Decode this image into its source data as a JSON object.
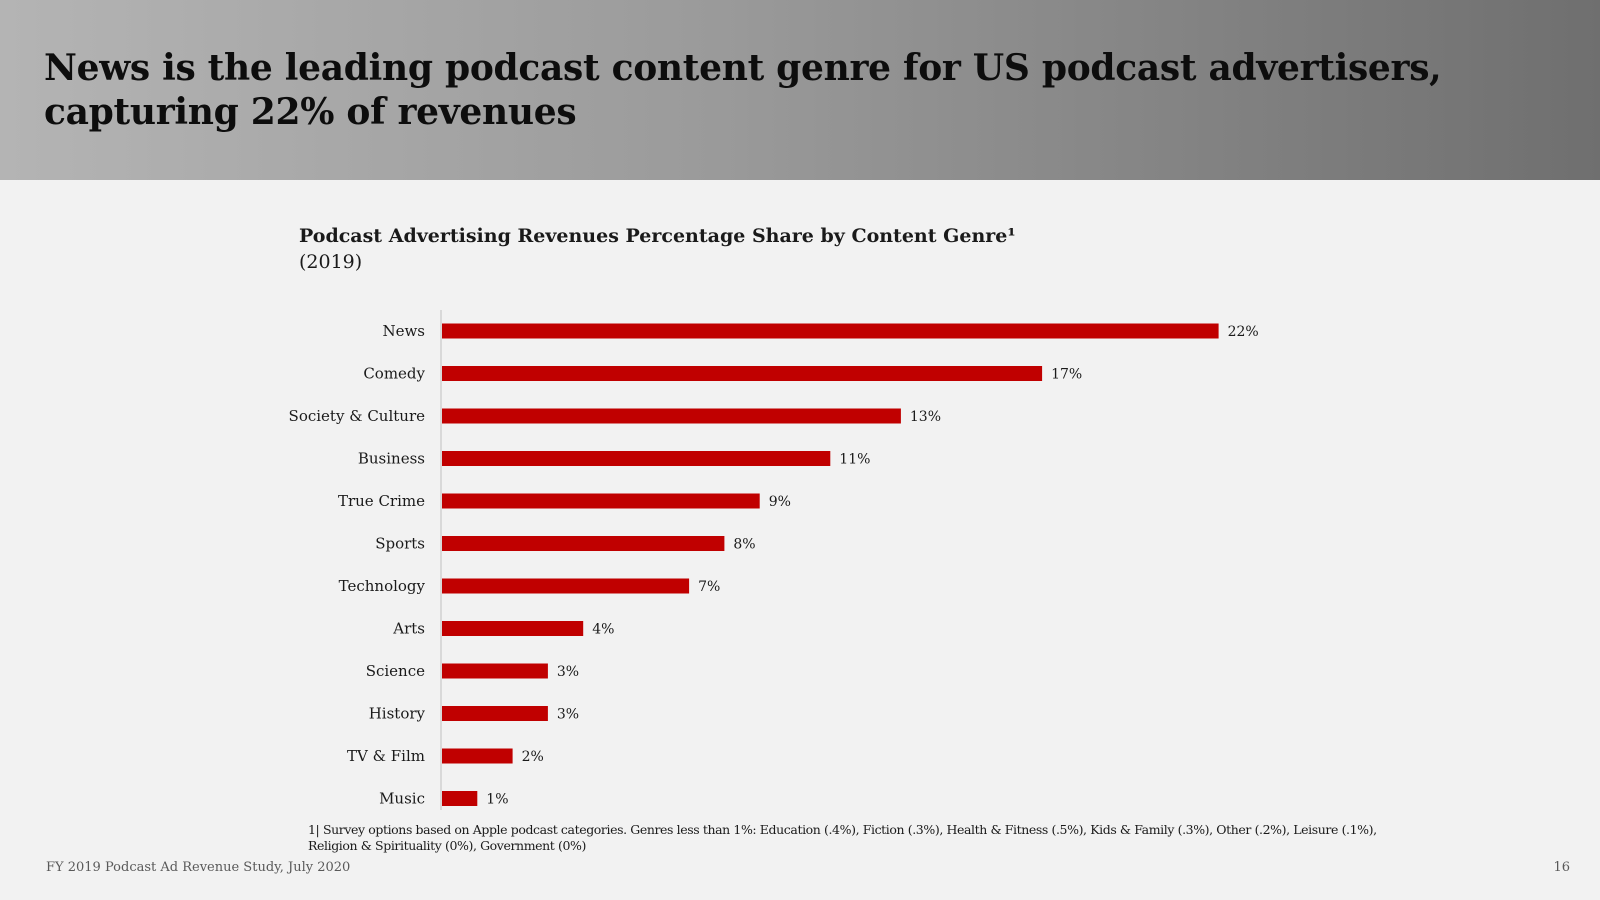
{
  "headline": "News is the leading podcast content genre for US podcast advertisers, capturing 22% of revenues",
  "chart_data": {
    "type": "bar",
    "orientation": "horizontal",
    "title": "Podcast Advertising Revenues Percentage Share by Content Genre¹",
    "subtitle": "(2019)",
    "categories": [
      "News",
      "Comedy",
      "Society & Culture",
      "Business",
      "True Crime",
      "Sports",
      "Technology",
      "Arts",
      "Science",
      "History",
      "TV & Film",
      "Music"
    ],
    "values": [
      22,
      17,
      13,
      11,
      9,
      8,
      7,
      4,
      3,
      3,
      2,
      1
    ],
    "value_labels": [
      "22%",
      "17%",
      "13%",
      "11%",
      "9%",
      "8%",
      "7%",
      "4%",
      "3%",
      "3%",
      "2%",
      "1%"
    ],
    "unit": "%",
    "bar_color": "#c00000",
    "grid": false,
    "legend": "none"
  },
  "footnote": "1| Survey options based on Apple podcast categories. Genres less than 1%: Education (.4%), Fiction (.3%), Health & Fitness (.5%), Kids & Family (.3%), Other (.2%), Leisure (.1%), Religion & Spirituality (0%), Government (0%)",
  "footer": {
    "source": "FY 2019 Podcast Ad Revenue Study, July 2020",
    "page_number": "16"
  }
}
